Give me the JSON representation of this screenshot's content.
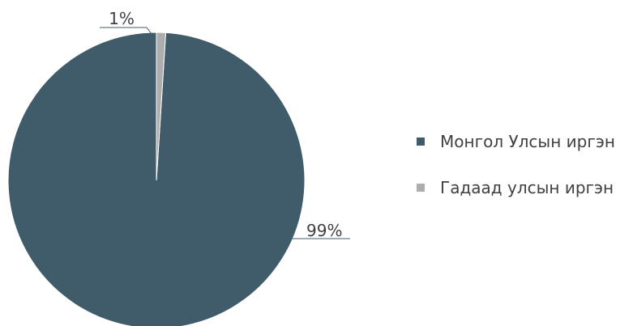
{
  "chart_data": {
    "type": "pie",
    "title": "",
    "slices": [
      {
        "name": "Монгол Улсын иргэн",
        "value": 99,
        "label": "99%",
        "color": "#405B6A"
      },
      {
        "name": "Гадаад улсын иргэн",
        "value": 1,
        "label": "1%",
        "color": "#ADADAD"
      }
    ],
    "legend_position": "right"
  }
}
